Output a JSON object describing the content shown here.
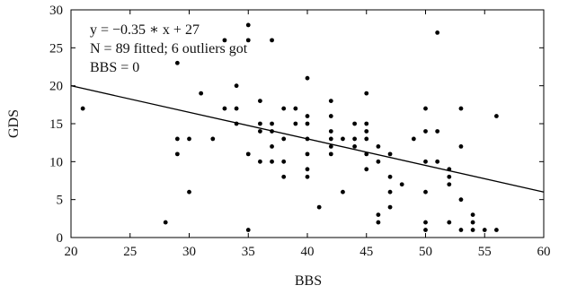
{
  "chart_data": {
    "type": "scatter",
    "title": "",
    "xlabel": "BBS",
    "ylabel": "GDS",
    "xlim": [
      20,
      60
    ],
    "ylim": [
      0,
      30
    ],
    "x_ticks": [
      20,
      25,
      30,
      35,
      40,
      45,
      50,
      55,
      60
    ],
    "y_ticks": [
      0,
      5,
      10,
      15,
      20,
      25,
      30
    ],
    "x_tick_labels": [
      "20",
      "25",
      "30",
      "35",
      "40",
      "45",
      "50",
      "55",
      "60"
    ],
    "y_tick_labels": [
      "0",
      "5",
      "10",
      "15",
      "20",
      "25",
      "30"
    ],
    "grid": false,
    "legend": null,
    "annotations": [
      "y = −0.35 ∗ x + 27",
      "N = 89 fitted; 6 outliers got",
      "BBS = 0"
    ],
    "fit_line": {
      "slope": -0.35,
      "intercept": 27
    },
    "colors": {
      "points": "#000000",
      "line": "#000000",
      "axes": "#000000"
    },
    "series": [
      {
        "points": [
          [
            21,
            17
          ],
          [
            28,
            2
          ],
          [
            29,
            23
          ],
          [
            29,
            13
          ],
          [
            29,
            11
          ],
          [
            30,
            13
          ],
          [
            30,
            6
          ],
          [
            31,
            19
          ],
          [
            32,
            13
          ],
          [
            33,
            17
          ],
          [
            33,
            26
          ],
          [
            34,
            20
          ],
          [
            34,
            17
          ],
          [
            34,
            15
          ],
          [
            35,
            28
          ],
          [
            35,
            26
          ],
          [
            35,
            11
          ],
          [
            35,
            1
          ],
          [
            36,
            18
          ],
          [
            36,
            15
          ],
          [
            36,
            14
          ],
          [
            36,
            10
          ],
          [
            37,
            26
          ],
          [
            37,
            15
          ],
          [
            37,
            14
          ],
          [
            37,
            12
          ],
          [
            37,
            10
          ],
          [
            38,
            17
          ],
          [
            38,
            13
          ],
          [
            38,
            10
          ],
          [
            38,
            8
          ],
          [
            39,
            17
          ],
          [
            39,
            15
          ],
          [
            40,
            21
          ],
          [
            40,
            16
          ],
          [
            40,
            15
          ],
          [
            40,
            13
          ],
          [
            40,
            11
          ],
          [
            40,
            9
          ],
          [
            40,
            8
          ],
          [
            41,
            4
          ],
          [
            42,
            18
          ],
          [
            42,
            16
          ],
          [
            42,
            14
          ],
          [
            42,
            13
          ],
          [
            42,
            12
          ],
          [
            42,
            11
          ],
          [
            43,
            13
          ],
          [
            43,
            6
          ],
          [
            44,
            15
          ],
          [
            44,
            13
          ],
          [
            44,
            12
          ],
          [
            45,
            19
          ],
          [
            45,
            15
          ],
          [
            45,
            14
          ],
          [
            45,
            13
          ],
          [
            45,
            11
          ],
          [
            45,
            9
          ],
          [
            46,
            12
          ],
          [
            46,
            10
          ],
          [
            46,
            3
          ],
          [
            46,
            2
          ],
          [
            47,
            11
          ],
          [
            47,
            8
          ],
          [
            47,
            6
          ],
          [
            47,
            4
          ],
          [
            48,
            7
          ],
          [
            49,
            13
          ],
          [
            50,
            17
          ],
          [
            50,
            14
          ],
          [
            50,
            10
          ],
          [
            50,
            6
          ],
          [
            50,
            2
          ],
          [
            50,
            1
          ],
          [
            51,
            27
          ],
          [
            51,
            14
          ],
          [
            51,
            10
          ],
          [
            52,
            9
          ],
          [
            52,
            8
          ],
          [
            52,
            7
          ],
          [
            52,
            2
          ],
          [
            53,
            17
          ],
          [
            53,
            12
          ],
          [
            53,
            5
          ],
          [
            53,
            1
          ],
          [
            54,
            3
          ],
          [
            54,
            2
          ],
          [
            54,
            1
          ],
          [
            55,
            1
          ],
          [
            56,
            16
          ],
          [
            56,
            1
          ]
        ]
      }
    ]
  }
}
